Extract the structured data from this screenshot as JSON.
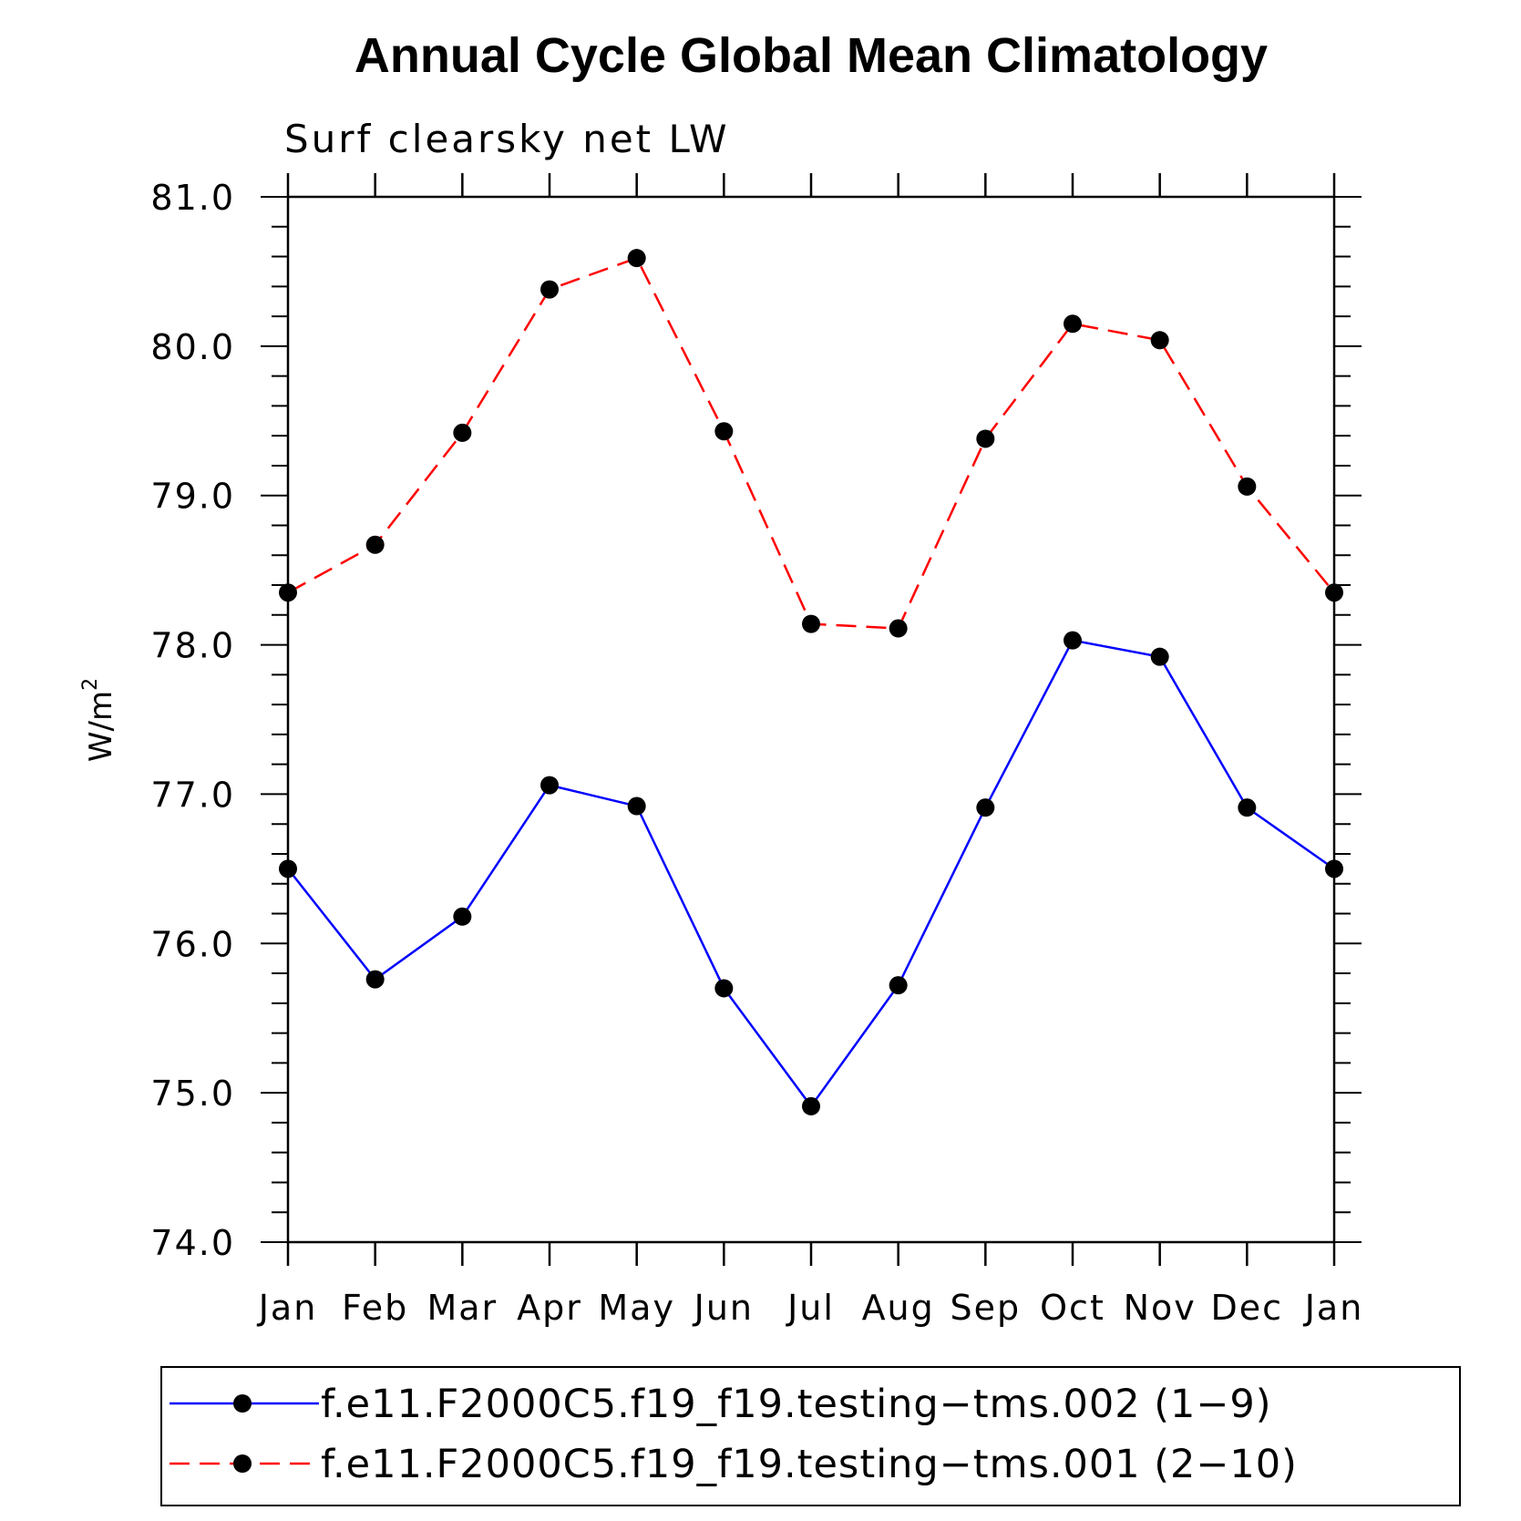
{
  "chart_data": {
    "type": "line",
    "title": "Annual Cycle Global Mean Climatology",
    "subtitle": "Surf clearsky net LW",
    "xlabel": "",
    "ylabel": "W/m",
    "ylabel_superscript": "2",
    "categories": [
      "Jan",
      "Feb",
      "Mar",
      "Apr",
      "May",
      "Jun",
      "Jul",
      "Aug",
      "Sep",
      "Oct",
      "Nov",
      "Dec",
      "Jan"
    ],
    "ylim": [
      74.0,
      81.0
    ],
    "yticks": [
      "74.0",
      "75.0",
      "76.0",
      "77.0",
      "78.0",
      "79.0",
      "80.0",
      "81.0"
    ],
    "grid": false,
    "legend_position": "bottom",
    "series": [
      {
        "name": "f.e11.F2000C5.f19_f19.testing−tms.002 (1−9)",
        "color": "#0000ff",
        "line_style": "solid",
        "marker": "filled-circle",
        "values": [
          76.5,
          75.76,
          76.18,
          77.06,
          76.92,
          75.7,
          74.91,
          75.72,
          76.91,
          78.03,
          77.92,
          76.91,
          76.5
        ]
      },
      {
        "name": "f.e11.F2000C5.f19_f19.testing−tms.001 (2−10)",
        "color": "#ff0000",
        "line_style": "dashed",
        "marker": "filled-circle",
        "values": [
          78.35,
          78.67,
          79.42,
          80.38,
          80.59,
          79.43,
          78.14,
          78.11,
          79.38,
          80.15,
          80.04,
          79.06,
          78.35
        ]
      }
    ]
  }
}
